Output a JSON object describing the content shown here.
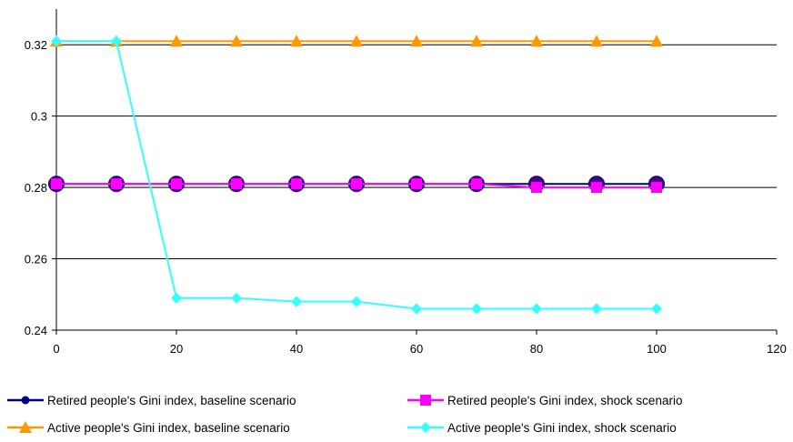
{
  "chart_data": {
    "type": "line",
    "x": [
      0,
      10,
      20,
      30,
      40,
      50,
      60,
      70,
      80,
      90,
      100
    ],
    "xlim": [
      0,
      120
    ],
    "ylim": [
      0.24,
      0.33
    ],
    "x_ticks": [
      0,
      20,
      40,
      60,
      80,
      100,
      120
    ],
    "y_ticks": [
      0.24,
      0.26,
      0.28,
      0.3,
      0.32
    ],
    "x_tick_labels": [
      "0",
      "20",
      "40",
      "60",
      "80",
      "100",
      "120"
    ],
    "y_tick_labels": [
      "0.24",
      "0.26",
      "0.28",
      "0.3",
      "0.32"
    ],
    "grid": "horizontal",
    "legend_position": "bottom",
    "series": [
      {
        "name": "Retired people's Gini index, baseline scenario",
        "color": "#000080",
        "marker": "circle",
        "values": [
          0.281,
          0.281,
          0.281,
          0.281,
          0.281,
          0.281,
          0.281,
          0.281,
          0.281,
          0.281,
          0.281
        ]
      },
      {
        "name": "Retired people's Gini index, shock scenario",
        "color": "#ff00ff",
        "marker": "square",
        "values": [
          0.281,
          0.281,
          0.281,
          0.281,
          0.281,
          0.281,
          0.281,
          0.281,
          0.28,
          0.28,
          0.28
        ]
      },
      {
        "name": "Active people's Gini index, baseline scenario",
        "color": "#ff9900",
        "marker": "triangle",
        "values": [
          0.321,
          0.321,
          0.321,
          0.321,
          0.321,
          0.321,
          0.321,
          0.321,
          0.321,
          0.321,
          0.321
        ]
      },
      {
        "name": "Active people's Gini index, shock scenario",
        "color": "#33ffff",
        "marker": "diamond",
        "values": [
          0.321,
          0.321,
          0.249,
          0.249,
          0.248,
          0.248,
          0.246,
          0.246,
          0.246,
          0.246,
          0.246
        ]
      }
    ]
  }
}
